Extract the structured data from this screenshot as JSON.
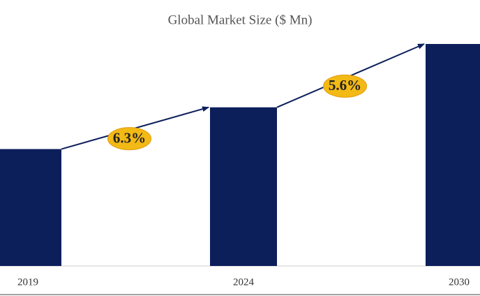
{
  "chart_data": {
    "type": "bar",
    "title": "Global Market Size ($ Mn)",
    "categories": [
      "2019",
      "2024",
      "2030"
    ],
    "values": [
      168,
      228,
      319
    ],
    "color": "#0c1f5b",
    "ylim": [
      0,
      320
    ],
    "growth_labels": [
      "6.3%",
      "5.6%"
    ]
  }
}
